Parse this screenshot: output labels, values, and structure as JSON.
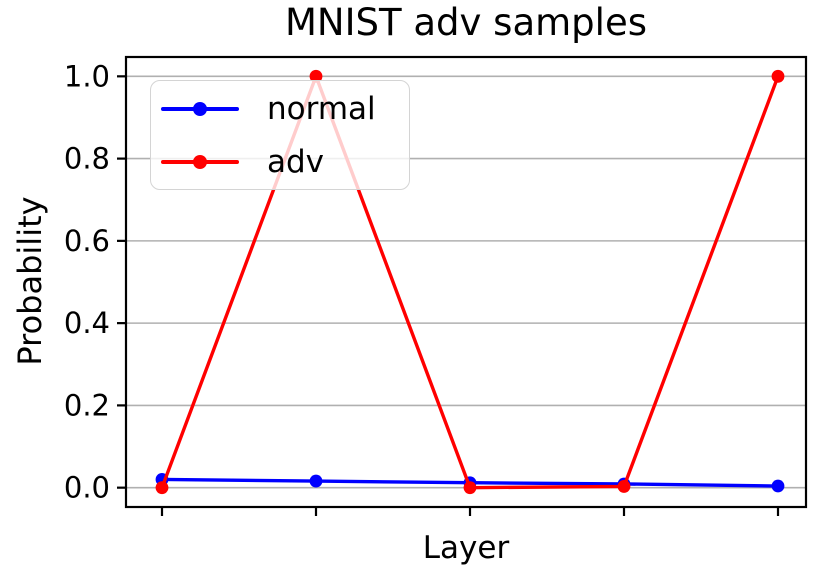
{
  "figure": {
    "background": "#ffffff",
    "axis_color": "#000000",
    "tick_label_color": "#000000"
  },
  "chart_data": {
    "type": "line",
    "title": "MNIST adv samples",
    "xlabel": "Layer",
    "ylabel": "Probability",
    "x": [
      1,
      2,
      3,
      4,
      5
    ],
    "xtick_labels": [
      "",
      "",
      "",
      "",
      ""
    ],
    "series": [
      {
        "name": "normal",
        "color": "#0000ff",
        "marker": "circle",
        "values": [
          0.02,
          0.016,
          0.012,
          0.009,
          0.004
        ]
      },
      {
        "name": "adv",
        "color": "#ff0000",
        "marker": "circle",
        "values": [
          0.0,
          1.0,
          0.0,
          0.003,
          1.0
        ]
      }
    ],
    "ylim": [
      -0.047,
      1.047
    ],
    "yticks": [
      0.0,
      0.2,
      0.4,
      0.6,
      0.8,
      1.0
    ],
    "ytick_labels": [
      "0.0",
      "0.2",
      "0.4",
      "0.6",
      "0.8",
      "1.0"
    ],
    "grid": {
      "horizontal": true,
      "vertical": false,
      "color": "#b0b0b0"
    },
    "legend": {
      "position": "upper-left",
      "frame_alpha": 0.8
    }
  }
}
